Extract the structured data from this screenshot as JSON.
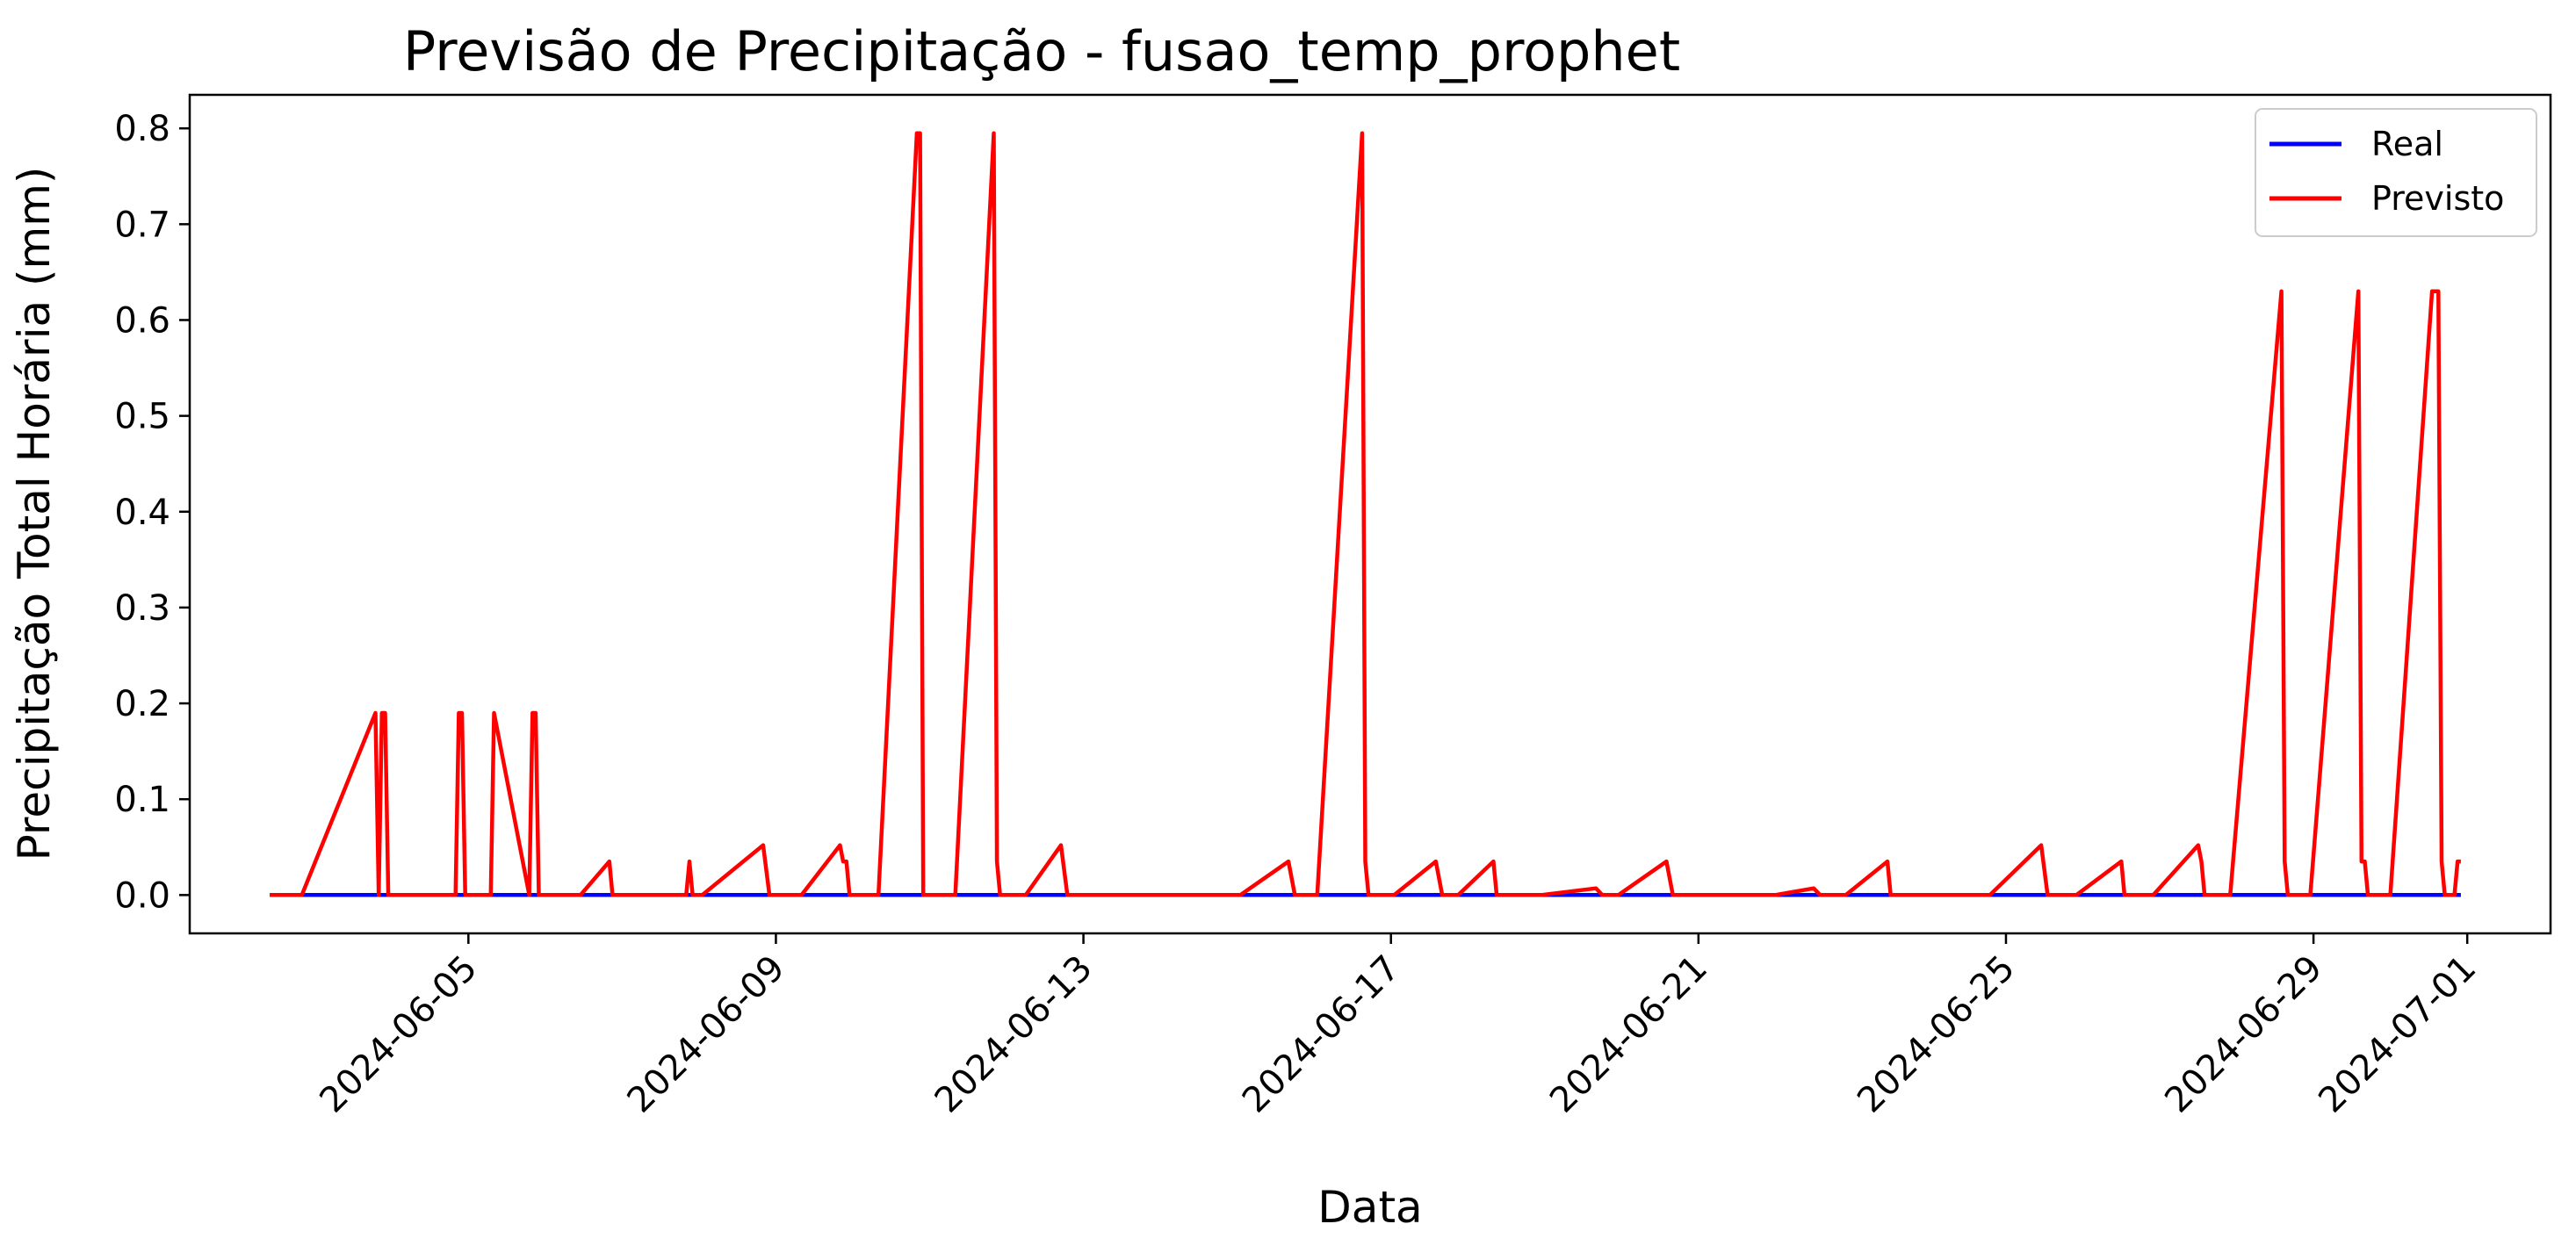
{
  "chart_data": {
    "type": "line",
    "title": "Previsão de Precipitação - fusao_temp_prophet",
    "xlabel": "Data",
    "ylabel": "Precipitação Total Horária (mm)",
    "xlim": [
      "2024-06-01T09:00",
      "2024-07-02T02:00"
    ],
    "ylim": [
      -0.04,
      0.835
    ],
    "x_ticks": [
      "2024-06-05",
      "2024-06-09",
      "2024-06-13",
      "2024-06-17",
      "2024-06-21",
      "2024-06-25",
      "2024-06-29",
      "2024-07-01"
    ],
    "y_ticks": [
      "0.0",
      "0.1",
      "0.2",
      "0.3",
      "0.4",
      "0.5",
      "0.6",
      "0.7",
      "0.8"
    ],
    "legend": {
      "position": "upper right",
      "entries": [
        "Real",
        "Previsto"
      ]
    },
    "series": [
      {
        "name": "Real",
        "color": "#0000ff",
        "points": [
          [
            "2024-06-02T10:00",
            0.0
          ],
          [
            "2024-06-30T22:00",
            0.0
          ]
        ]
      },
      {
        "name": "Previsto",
        "color": "#ff0000",
        "points": [
          [
            "2024-06-02T10:00",
            0.0
          ],
          [
            "2024-06-02T20:00",
            0.0
          ],
          [
            "2024-06-03T19:00",
            0.19
          ],
          [
            "2024-06-03T20:00",
            0.0
          ],
          [
            "2024-06-03T21:00",
            0.19
          ],
          [
            "2024-06-03T22:00",
            0.19
          ],
          [
            "2024-06-03T23:00",
            0.0
          ],
          [
            "2024-06-04T20:00",
            0.0
          ],
          [
            "2024-06-04T21:00",
            0.19
          ],
          [
            "2024-06-04T22:00",
            0.19
          ],
          [
            "2024-06-04T23:00",
            0.0
          ],
          [
            "2024-06-05T07:00",
            0.0
          ],
          [
            "2024-06-05T08:00",
            0.19
          ],
          [
            "2024-06-05T19:00",
            0.0
          ],
          [
            "2024-06-05T20:00",
            0.19
          ],
          [
            "2024-06-05T21:00",
            0.19
          ],
          [
            "2024-06-05T22:00",
            0.0
          ],
          [
            "2024-06-06T11:00",
            0.0
          ],
          [
            "2024-06-06T20:00",
            0.035
          ],
          [
            "2024-06-06T21:00",
            0.0
          ],
          [
            "2024-06-07T20:00",
            0.0
          ],
          [
            "2024-06-07T21:00",
            0.035
          ],
          [
            "2024-06-07T22:00",
            0.0
          ],
          [
            "2024-06-08T01:00",
            0.0
          ],
          [
            "2024-06-08T20:00",
            0.052
          ],
          [
            "2024-06-08T22:00",
            0.0
          ],
          [
            "2024-06-09T08:00",
            0.0
          ],
          [
            "2024-06-09T20:00",
            0.052
          ],
          [
            "2024-06-09T21:00",
            0.035
          ],
          [
            "2024-06-09T22:00",
            0.035
          ],
          [
            "2024-06-09T23:00",
            0.0
          ],
          [
            "2024-06-10T08:00",
            0.0
          ],
          [
            "2024-06-10T20:00",
            0.795
          ],
          [
            "2024-06-10T21:00",
            0.795
          ],
          [
            "2024-06-10T22:00",
            0.0
          ],
          [
            "2024-06-11T08:00",
            0.0
          ],
          [
            "2024-06-11T20:00",
            0.795
          ],
          [
            "2024-06-11T21:00",
            0.035
          ],
          [
            "2024-06-11T22:00",
            0.0
          ],
          [
            "2024-06-12T06:00",
            0.0
          ],
          [
            "2024-06-12T17:00",
            0.052
          ],
          [
            "2024-06-12T19:00",
            0.0
          ],
          [
            "2024-06-15T01:00",
            0.0
          ],
          [
            "2024-06-15T16:00",
            0.035
          ],
          [
            "2024-06-15T18:00",
            0.0
          ],
          [
            "2024-06-16T01:00",
            0.0
          ],
          [
            "2024-06-16T15:00",
            0.795
          ],
          [
            "2024-06-16T16:00",
            0.035
          ],
          [
            "2024-06-16T17:00",
            0.0
          ],
          [
            "2024-06-17T01:00",
            0.0
          ],
          [
            "2024-06-17T14:00",
            0.035
          ],
          [
            "2024-06-17T16:00",
            0.0
          ],
          [
            "2024-06-17T21:00",
            0.0
          ],
          [
            "2024-06-18T08:00",
            0.035
          ],
          [
            "2024-06-18T09:00",
            0.0
          ],
          [
            "2024-06-18T23:00",
            0.0
          ],
          [
            "2024-06-19T16:00",
            0.007
          ],
          [
            "2024-06-19T18:00",
            0.0
          ],
          [
            "2024-06-19T23:00",
            0.0
          ],
          [
            "2024-06-20T14:00",
            0.035
          ],
          [
            "2024-06-20T16:00",
            0.0
          ],
          [
            "2024-06-22T00:00",
            0.0
          ],
          [
            "2024-06-22T12:00",
            0.007
          ],
          [
            "2024-06-22T14:00",
            0.0
          ],
          [
            "2024-06-22T22:00",
            0.0
          ],
          [
            "2024-06-23T11:00",
            0.035
          ],
          [
            "2024-06-23T12:00",
            0.0
          ],
          [
            "2024-06-24T19:00",
            0.0
          ],
          [
            "2024-06-25T11:00",
            0.052
          ],
          [
            "2024-06-25T13:00",
            0.0
          ],
          [
            "2024-06-25T22:00",
            0.0
          ],
          [
            "2024-06-26T12:00",
            0.035
          ],
          [
            "2024-06-26T13:00",
            0.0
          ],
          [
            "2024-06-26T22:00",
            0.0
          ],
          [
            "2024-06-27T12:00",
            0.052
          ],
          [
            "2024-06-27T13:00",
            0.035
          ],
          [
            "2024-06-27T14:00",
            0.0
          ],
          [
            "2024-06-27T22:00",
            0.0
          ],
          [
            "2024-06-28T14:00",
            0.63
          ],
          [
            "2024-06-28T15:00",
            0.035
          ],
          [
            "2024-06-28T16:00",
            0.0
          ],
          [
            "2024-06-28T23:00",
            0.0
          ],
          [
            "2024-06-29T14:00",
            0.63
          ],
          [
            "2024-06-29T15:00",
            0.035
          ],
          [
            "2024-06-29T16:00",
            0.035
          ],
          [
            "2024-06-29T17:00",
            0.0
          ],
          [
            "2024-06-30T00:00",
            0.0
          ],
          [
            "2024-06-30T13:00",
            0.63
          ],
          [
            "2024-06-30T14:00",
            0.63
          ],
          [
            "2024-06-30T15:00",
            0.63
          ],
          [
            "2024-06-30T16:00",
            0.035
          ],
          [
            "2024-06-30T17:00",
            0.0
          ],
          [
            "2024-06-30T20:00",
            0.0
          ],
          [
            "2024-06-30T21:00",
            0.035
          ],
          [
            "2024-06-30T22:00",
            0.035
          ]
        ]
      }
    ]
  }
}
